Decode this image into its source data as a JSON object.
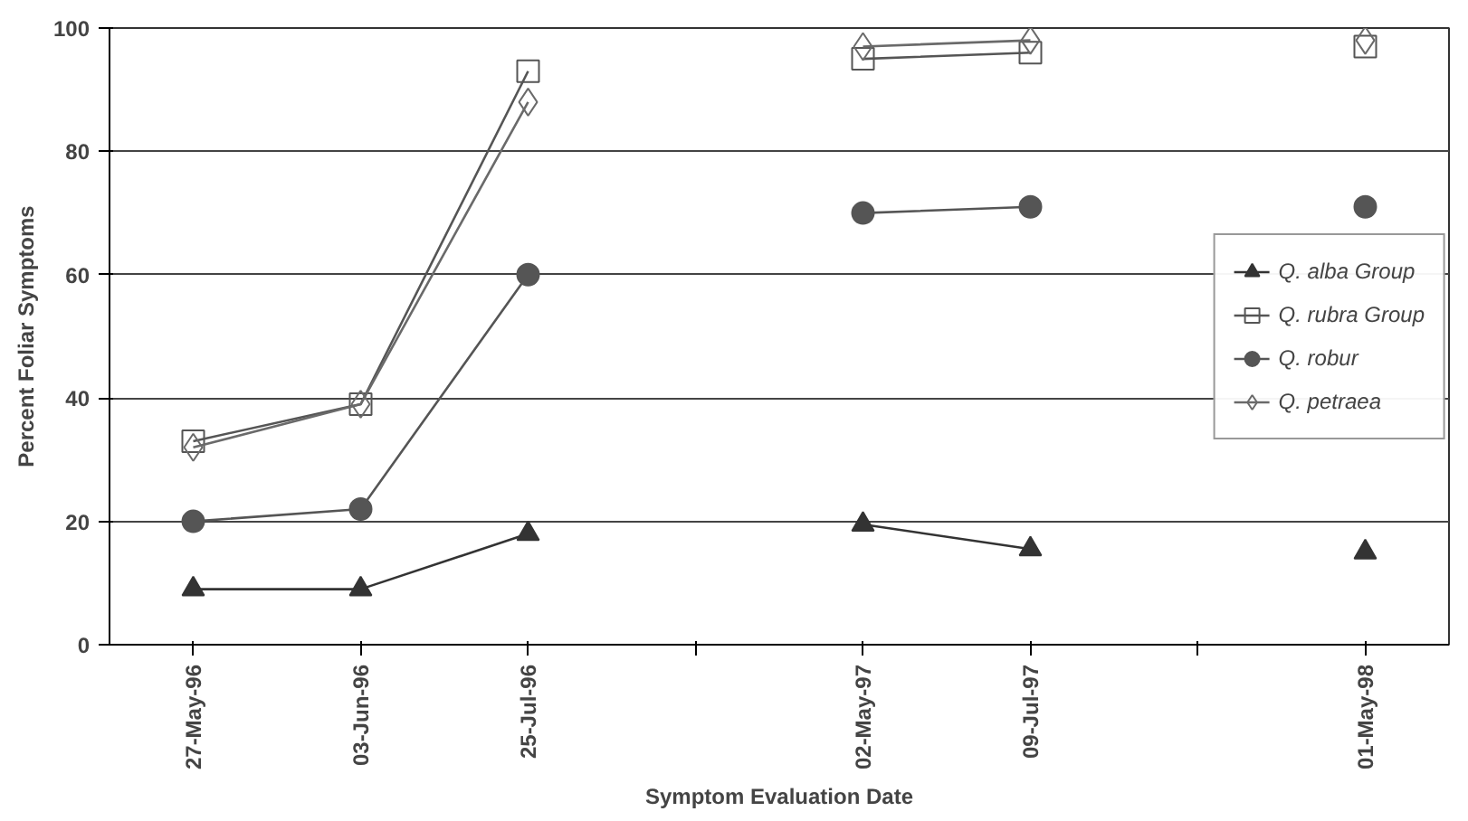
{
  "chart_data": {
    "type": "line",
    "xlabel": "Symptom Evaluation Date",
    "ylabel": "Percent Foliar Symptoms",
    "categories": [
      "27-May-96",
      "03-Jun-96",
      "25-Jul-96",
      null,
      "02-May-97",
      "09-Jul-97",
      null,
      "01-May-98"
    ],
    "ylim": [
      0,
      100
    ],
    "yticks": [
      0,
      20,
      40,
      60,
      80,
      100
    ],
    "grid": "y",
    "legend": "right",
    "series": [
      {
        "name": "Q. alba Group",
        "color": "#333333",
        "marker": "triangle",
        "values": [
          9,
          9,
          18,
          null,
          19.5,
          15.5,
          null,
          15
        ]
      },
      {
        "name": "Q. rubra Group",
        "color": "#555555",
        "marker": "square",
        "values": [
          33,
          39,
          93,
          null,
          95,
          96,
          null,
          97
        ]
      },
      {
        "name": "Q. robur",
        "color": "#555555",
        "marker": "circle",
        "values": [
          20,
          22,
          60,
          null,
          70,
          71,
          null,
          71
        ]
      },
      {
        "name": "Q. petraea",
        "color": "#6a6a6a",
        "marker": "diamond",
        "values": [
          32,
          39,
          88,
          null,
          97,
          98,
          null,
          98
        ]
      }
    ]
  }
}
